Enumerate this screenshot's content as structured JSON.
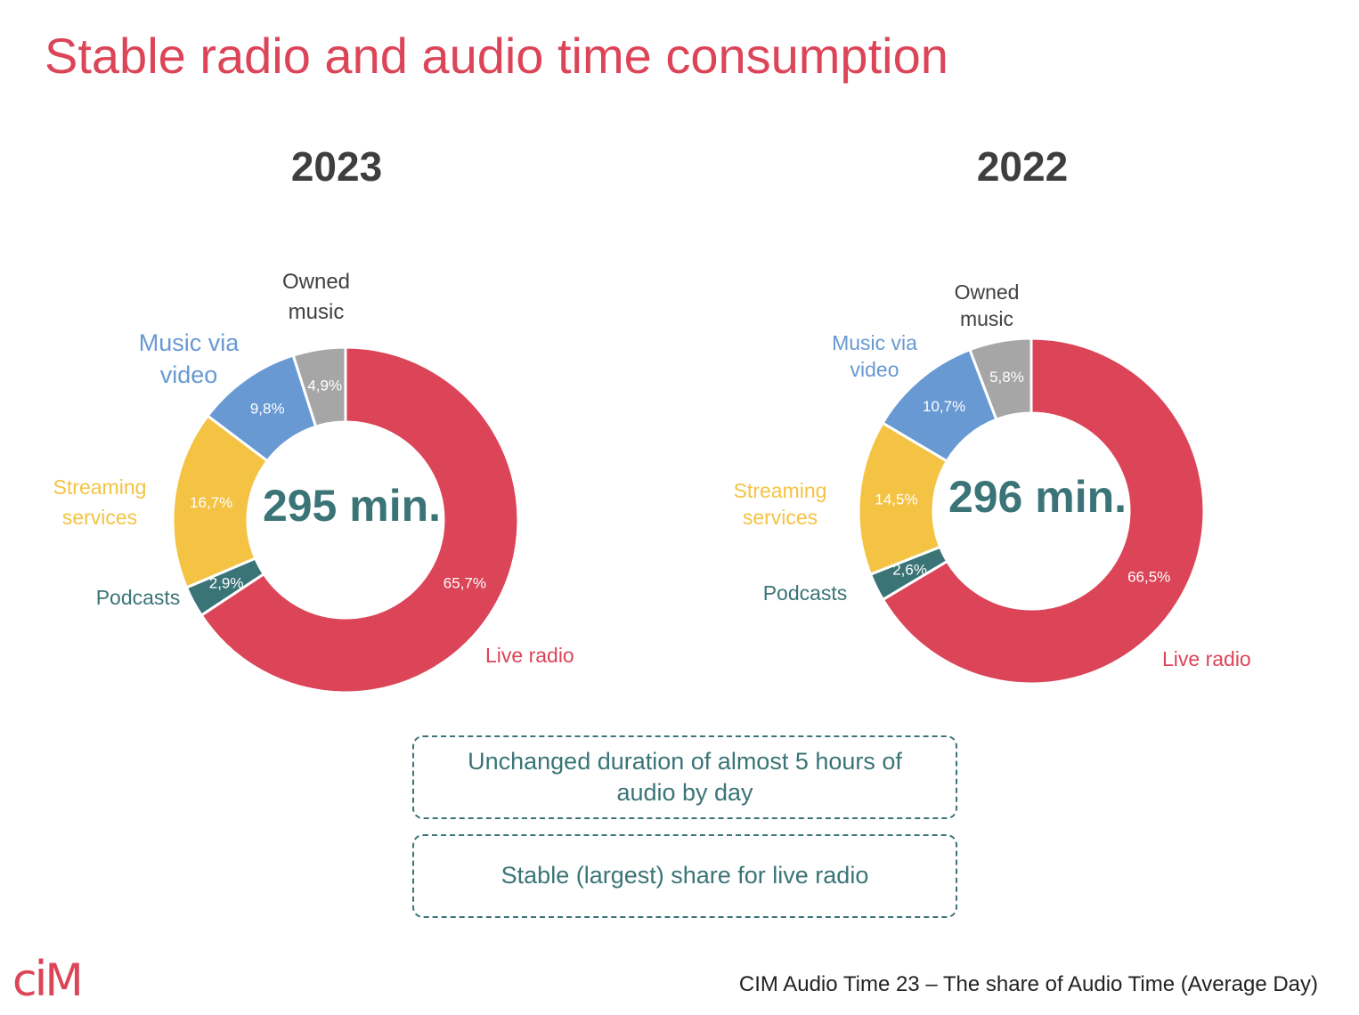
{
  "title": "Stable radio and audio time consumption",
  "colors": {
    "title": "#dc4458",
    "live_radio": "#dc4458",
    "podcasts": "#3b7477",
    "streaming": "#f4c343",
    "music_video": "#6899d3",
    "owned_music": "#a6a6a6",
    "center_text": "#3b7477"
  },
  "chart_data": [
    {
      "type": "pie",
      "variant": "donut",
      "year": "2023",
      "center_label": "295 min.",
      "slices": [
        {
          "category": "Live radio",
          "value": 65.7,
          "value_label": "65,7%",
          "color": "#dc4458"
        },
        {
          "category": "Podcasts",
          "value": 2.9,
          "value_label": "2,9%",
          "color": "#3b7477"
        },
        {
          "category": "Streaming services",
          "value": 16.7,
          "value_label": "16,7%",
          "color": "#f4c343"
        },
        {
          "category": "Music via video",
          "value": 9.8,
          "value_label": "9,8%",
          "color": "#6899d3"
        },
        {
          "category": "Owned music",
          "value": 4.9,
          "value_label": "4,9%",
          "color": "#a6a6a6"
        }
      ]
    },
    {
      "type": "pie",
      "variant": "donut",
      "year": "2022",
      "center_label": "296 min.",
      "slices": [
        {
          "category": "Live radio",
          "value": 66.5,
          "value_label": "66,5%",
          "color": "#dc4458"
        },
        {
          "category": "Podcasts",
          "value": 2.6,
          "value_label": "2,6%",
          "color": "#3b7477"
        },
        {
          "category": "Streaming services",
          "value": 14.5,
          "value_label": "14,5%",
          "color": "#f4c343"
        },
        {
          "category": "Music via video",
          "value": 10.7,
          "value_label": "10,7%",
          "color": "#6899d3"
        },
        {
          "category": "Owned music",
          "value": 5.8,
          "value_label": "5,8%",
          "color": "#a6a6a6"
        }
      ]
    }
  ],
  "category_labels": {
    "owned_music": [
      "Owned",
      "music"
    ],
    "music_video": [
      "Music via",
      "video"
    ],
    "streaming": [
      "Streaming",
      "services"
    ],
    "podcasts": [
      "Podcasts"
    ],
    "live_radio": [
      "Live radio"
    ]
  },
  "callouts": [
    "Unchanged duration of almost 5 hours of audio by day",
    "Stable (largest) share for live radio"
  ],
  "logo_text": "CIM",
  "source_note": "CIM Audio Time 23 – The share of Audio Time (Average Day)"
}
